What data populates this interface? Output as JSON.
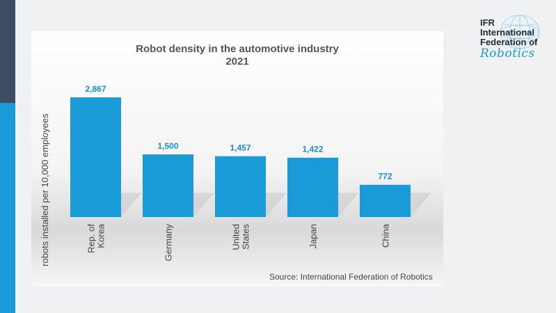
{
  "logo": {
    "line1": "IFR",
    "line2": "International",
    "line3": "Federation of",
    "line4": "Robotics"
  },
  "colors": {
    "bar": "#1a9ad6",
    "value_label": "#1a8fc8",
    "sidebar_dark": "#3e4d62",
    "sidebar_blue": "#1a9ad6"
  },
  "source": "Source: International Federation of Robotics",
  "chart_data": {
    "type": "bar",
    "title": "Robot density in the automotive industry",
    "subtitle": "2021",
    "ylabel": "robots installed per 10,000 employees",
    "xlabel": "",
    "categories": [
      [
        "Rep. of",
        "Korea"
      ],
      [
        "Germany"
      ],
      [
        "United",
        "States"
      ],
      [
        "Japan"
      ],
      [
        "China"
      ]
    ],
    "values": [
      2867,
      1500,
      1457,
      1422,
      772
    ],
    "value_labels": [
      "2,867",
      "1,500",
      "1,457",
      "1,422",
      "772"
    ],
    "ylim": [
      0,
      2867
    ],
    "grid": false,
    "legend": "none"
  }
}
